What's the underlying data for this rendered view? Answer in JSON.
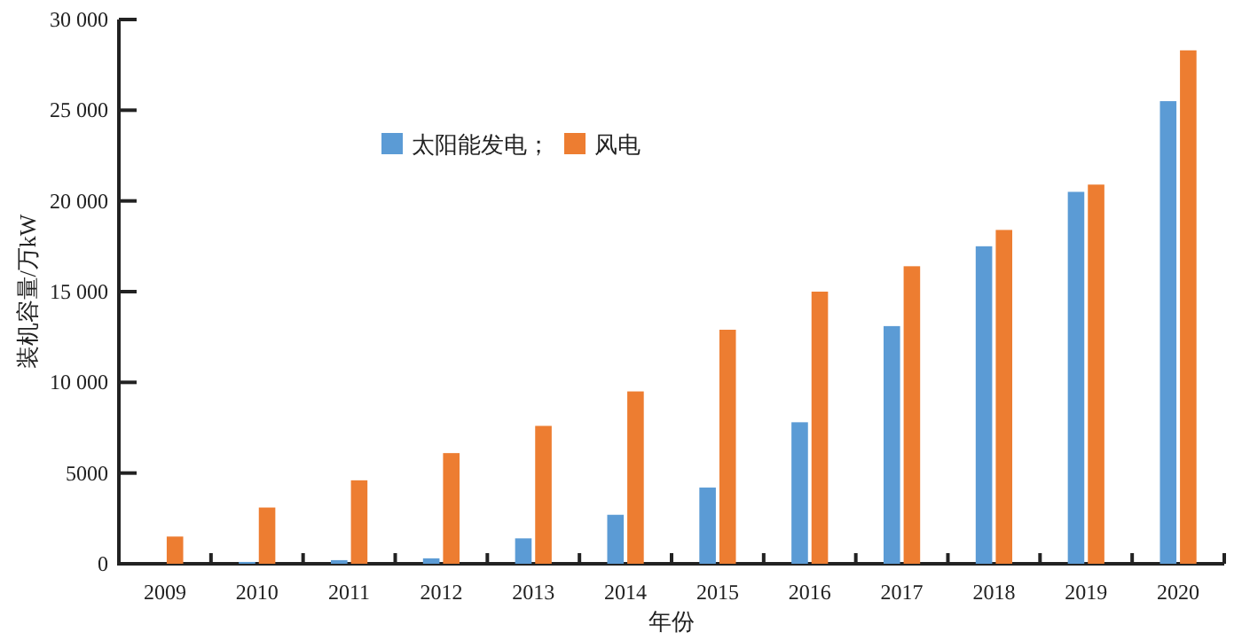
{
  "chart_data": {
    "type": "bar",
    "xlabel": "年份",
    "ylabel": "装机容量/万kW",
    "categories": [
      "2009",
      "2010",
      "2011",
      "2012",
      "2013",
      "2014",
      "2015",
      "2016",
      "2017",
      "2018",
      "2019",
      "2020"
    ],
    "series": [
      {
        "name": "太阳能发电；",
        "color": "#5b9bd5",
        "values": [
          0,
          100,
          200,
          300,
          1400,
          2700,
          4200,
          7800,
          13100,
          17500,
          20500,
          25500
        ]
      },
      {
        "name": "风电",
        "color": "#ed7d31",
        "values": [
          1500,
          3100,
          4600,
          6100,
          7600,
          9500,
          12900,
          15000,
          16400,
          18400,
          20900,
          28300
        ]
      }
    ],
    "ylim": [
      0,
      30000
    ],
    "yticks": [
      0,
      5000,
      {
        "value": 10000,
        "label": "10 000"
      },
      {
        "value": 15000,
        "label": "15 000"
      },
      {
        "value": 20000,
        "label": "20 000"
      },
      {
        "value": 25000,
        "label": "25 000"
      },
      {
        "value": 30000,
        "label": "30 000"
      }
    ],
    "grid": false,
    "legend": "top"
  }
}
